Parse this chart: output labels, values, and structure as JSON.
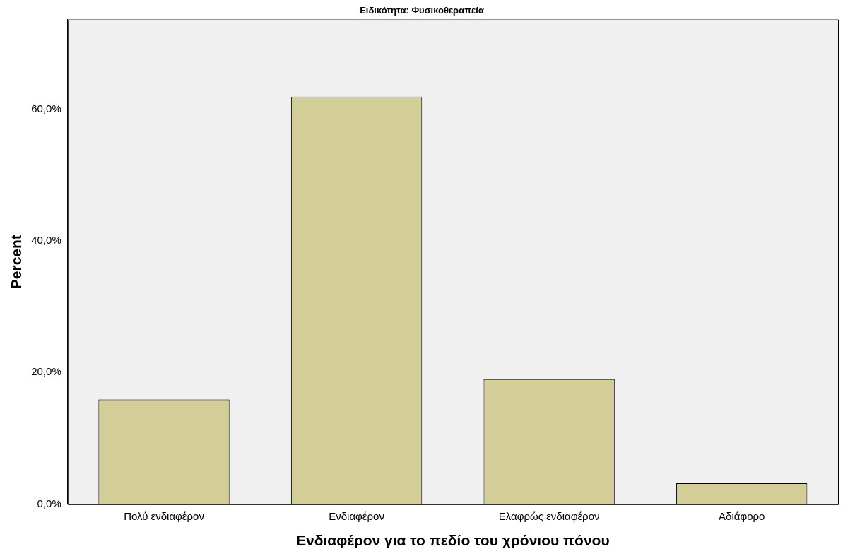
{
  "chart_data": {
    "type": "bar",
    "title": "Ειδικότητα: Φυσικοθεραπεία",
    "xlabel": "Ενδιαφέρον για το πεδίο του χρόνιου πόνου",
    "ylabel": "Percent",
    "categories": [
      "Πολύ ενδιαφέρον",
      "Ενδιαφέρον",
      "Ελαφρώς ενδιαφέρον",
      "Αδιάφορο"
    ],
    "values": [
      15.9,
      61.9,
      19.0,
      3.2
    ],
    "color": "#d3ce97",
    "ylim": [
      0,
      73.6
    ],
    "yticks": [
      {
        "value": 0,
        "label": "0,0%"
      },
      {
        "value": 20,
        "label": "20,0%"
      },
      {
        "value": 40,
        "label": "40,0%"
      },
      {
        "value": 60,
        "label": "60,0%"
      }
    ],
    "grid": false
  }
}
